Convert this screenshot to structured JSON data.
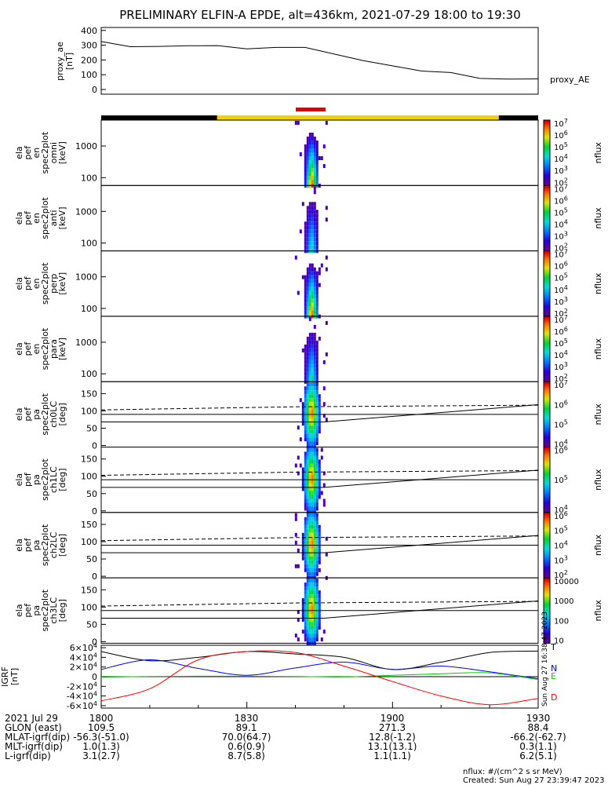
{
  "title": "PRELIMINARY ELFIN-A EPDE, alt=436km, 2021-07-29 18:00 to 19:30",
  "chart_data": [
    {
      "type": "line",
      "panel": "proxy_ae",
      "ylabel": [
        "proxy_ae",
        "[nT]"
      ],
      "yticks": [
        "0",
        "100",
        "200",
        "300",
        "400"
      ],
      "ylim": [
        0,
        420
      ],
      "series": [
        {
          "name": "proxy_AE",
          "x": [
            "18:00",
            "18:06",
            "18:12",
            "18:18",
            "18:24",
            "18:30",
            "18:36",
            "18:42",
            "18:48",
            "18:54",
            "19:00",
            "19:06",
            "19:12",
            "19:18",
            "19:24",
            "19:30"
          ],
          "values": [
            325,
            290,
            292,
            296,
            297,
            275,
            285,
            285,
            240,
            195,
            160,
            125,
            115,
            75,
            70,
            72
          ]
        }
      ]
    },
    {
      "type": "heatmap",
      "panels": [
        {
          "ylabel": [
            "ela",
            "pef",
            "en",
            "spec2plot",
            "omni",
            "[keV]"
          ],
          "yticks": [
            "100",
            "1000"
          ],
          "cb_ticks": [
            "10^2",
            "10^3",
            "10^4",
            "10^5",
            "10^6",
            "10^7"
          ],
          "cb_label": "nflux",
          "intensity": 1.0
        },
        {
          "ylabel": [
            "ela",
            "pef",
            "en",
            "spec2plot",
            "anti",
            "[keV]"
          ],
          "yticks": [
            "100",
            "1000"
          ],
          "cb_ticks": [
            "10^2",
            "10^3",
            "10^4",
            "10^5",
            "10^6",
            "10^7"
          ],
          "cb_label": "nflux",
          "intensity": 0.55
        },
        {
          "ylabel": [
            "ela",
            "pef",
            "en",
            "spec2plot",
            "perp",
            "[keV]"
          ],
          "yticks": [
            "100",
            "1000"
          ],
          "cb_ticks": [
            "10^2",
            "10^3",
            "10^4",
            "10^5",
            "10^6",
            "10^7"
          ],
          "cb_label": "nflux",
          "intensity": 1.0
        },
        {
          "ylabel": [
            "ela",
            "pef",
            "en",
            "spec2plot",
            "para",
            "[keV]"
          ],
          "yticks": [
            "100",
            "1000"
          ],
          "cb_ticks": [
            "10^2",
            "10^3",
            "10^4",
            "10^5",
            "10^6",
            "10^7"
          ],
          "cb_label": "nflux",
          "intensity": 0.6
        },
        {
          "ylabel": [
            "ela",
            "pef",
            "pa",
            "spec2plot",
            "ch0LC",
            "[deg]"
          ],
          "yticks": [
            "0",
            "50",
            "100",
            "150"
          ],
          "cb_ticks": [
            "10^4",
            "10^5",
            "10^6",
            "10^7"
          ],
          "cb_label": "nflux"
        },
        {
          "ylabel": [
            "ela",
            "pef",
            "pa",
            "spec2plot",
            "ch1LC",
            "[deg]"
          ],
          "yticks": [
            "0",
            "50",
            "100",
            "150"
          ],
          "cb_ticks": [
            "10^4",
            "10^5",
            "10^6"
          ],
          "cb_label": "nflux"
        },
        {
          "ylabel": [
            "ela",
            "pef",
            "pa",
            "spec2plot",
            "ch2LC",
            "[deg]"
          ],
          "yticks": [
            "0",
            "50",
            "100",
            "150"
          ],
          "cb_ticks": [
            "10^2",
            "10^3",
            "10^4",
            "10^5",
            "10^6"
          ],
          "cb_label": "nflux"
        },
        {
          "ylabel": [
            "ela",
            "pef",
            "pa",
            "spec2plot",
            "ch3LC",
            "[deg]"
          ],
          "yticks": [
            "0",
            "50",
            "100",
            "150"
          ],
          "cb_ticks": [
            "10",
            "100",
            "1000",
            "10000"
          ],
          "cb_label": "nflux"
        }
      ]
    },
    {
      "type": "line",
      "panel": "IGRF",
      "ylabel": [
        "IGRF",
        "[nT]"
      ],
      "yticks": [
        "-6x10^4",
        "-4x10^4",
        "-2x10^4",
        "0",
        "2x10^4",
        "4x10^4",
        "6x10^4"
      ],
      "ylim": [
        -65000,
        65000
      ],
      "x": [
        "18:00",
        "18:10",
        "18:20",
        "18:30",
        "18:40",
        "18:50",
        "19:00",
        "19:10",
        "19:20",
        "19:30"
      ],
      "series": [
        {
          "name": "T",
          "color": "#000000",
          "values": [
            52000,
            33000,
            40000,
            52000,
            47000,
            40000,
            15000,
            30000,
            50000,
            53000
          ]
        },
        {
          "name": "N",
          "color": "#0000ff",
          "values": [
            15000,
            35000,
            17000,
            3000,
            18000,
            30000,
            15000,
            22000,
            10000,
            -4000
          ]
        },
        {
          "name": "E",
          "color": "#00cc00",
          "values": [
            -1000,
            500,
            1000,
            1000,
            500,
            -500,
            3000,
            6000,
            8000,
            -6000
          ]
        },
        {
          "name": "D",
          "color": "#ff0000",
          "values": [
            -50000,
            -25000,
            35000,
            52000,
            50000,
            22000,
            -10000,
            -40000,
            -58000,
            -45000
          ]
        }
      ]
    }
  ],
  "xaxis": {
    "rows": [
      {
        "label": "2021 Jul 29",
        "values": [
          "1800",
          "1830",
          "1900",
          "1930"
        ]
      },
      {
        "label": "GLON (east)",
        "values": [
          "109.5",
          "89.1",
          "271.3",
          "88.4"
        ]
      },
      {
        "label": "MLAT-igrf(dip)",
        "values": [
          "-56.3(-51.0)",
          "70.0(64.7)",
          "12.8(-1.2)",
          "-66.2(-62.7)"
        ]
      },
      {
        "label": "MLT-igrf(dip)",
        "values": [
          "1.0(1.3)",
          "0.6(0.9)",
          "13.1(13.1)",
          "0.3(1.1)"
        ]
      },
      {
        "label": "L-igrf(dip)",
        "values": [
          "3.1(2.7)",
          "8.7(5.8)",
          "1.1(1.1)",
          "6.2(5.1)"
        ]
      }
    ]
  },
  "footer": {
    "units": "nflux: #/(cm^2 s sr MeV)",
    "created": "Created: Sun Aug 27 23:39:47 2023",
    "side_stamp": "Sun Aug 27 16:38:47 2023"
  },
  "colors": {
    "red_bar": "#e00000",
    "yellow_bar": "#f5d000",
    "black_bar": "#000000"
  }
}
